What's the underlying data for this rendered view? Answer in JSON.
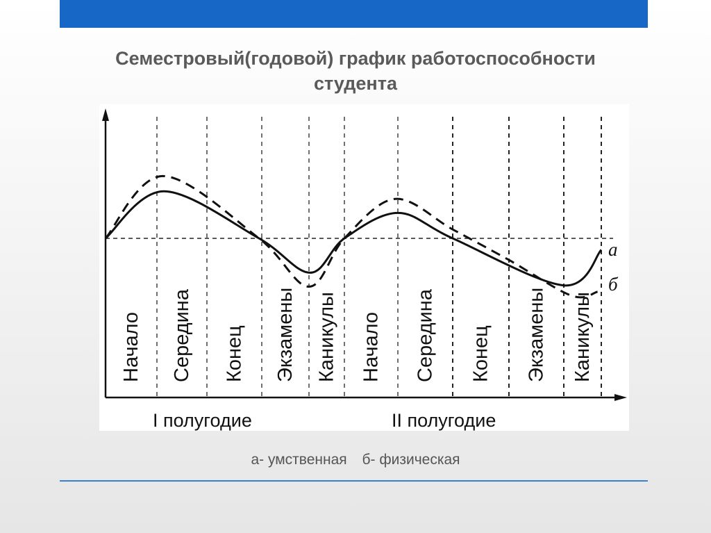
{
  "title_line1": "Семестровый(годовой) график работоспособности",
  "title_line2": "студента",
  "colors": {
    "bar": "#1767c6",
    "line": "#3a7fd0",
    "ink": "#111111"
  },
  "chart_data": {
    "type": "line",
    "periods": [
      "Начало",
      "Середина",
      "Конец",
      "Экзамены",
      "Каникулы",
      "Начало",
      "Середина",
      "Конец",
      "Экзамены",
      "Каникулы"
    ],
    "halves": [
      "I полугодие",
      "II полугодие"
    ],
    "baseline": 0,
    "grid": "vertical dashed lines between periods, dashed horizontal baseline",
    "series": [
      {
        "name": "а",
        "style": "solid",
        "x": [
          0,
          1.14,
          2.95,
          4.03,
          5.0,
          6.0,
          7.0,
          9.0,
          10.0
        ],
        "y": [
          0,
          0.37,
          0,
          -0.27,
          0,
          0.2,
          0,
          -0.37,
          -0.09
        ]
      },
      {
        "name": "б",
        "style": "dashed",
        "x": [
          0,
          1.12,
          2.95,
          4.0,
          5.0,
          5.95,
          7.0,
          8.0,
          9.2,
          9.9
        ],
        "y": [
          0,
          0.49,
          0,
          -0.38,
          0,
          0.31,
          0.07,
          -0.17,
          -0.45,
          -0.42
        ]
      }
    ]
  },
  "legend": {
    "a": "а- умственная",
    "b": "б- физическая"
  }
}
